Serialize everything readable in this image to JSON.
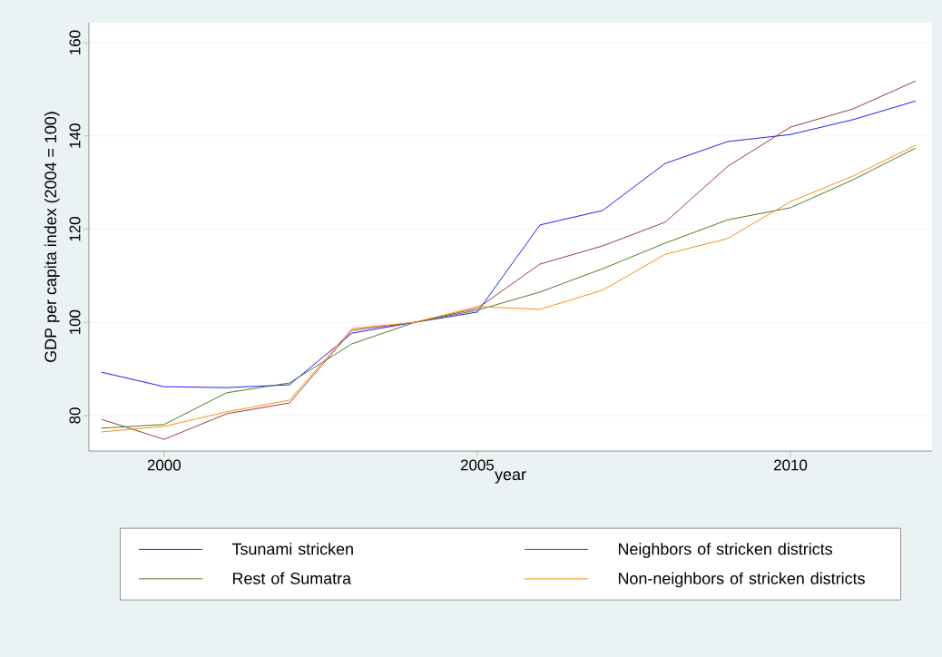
{
  "chart_data": {
    "type": "line",
    "xlabel": "year",
    "ylabel": "GDP per capita index (2004 = 100)",
    "x": [
      1999,
      2000,
      2001,
      2002,
      2003,
      2004,
      2005,
      2006,
      2007,
      2008,
      2009,
      2010,
      2011,
      2012
    ],
    "xlim": [
      1998.8,
      2012.26
    ],
    "xticks": [
      2000,
      2005,
      2010
    ],
    "ylim": [
      72.4,
      164.3
    ],
    "yticks": [
      80,
      100,
      120,
      140,
      160
    ],
    "grid": "y",
    "legend": "bottom",
    "series": [
      {
        "name": "Tsunami stricken",
        "color": "#1f1fff",
        "values": [
          89.3,
          86.2,
          86.0,
          86.6,
          97.7,
          100,
          102.2,
          120.9,
          124.0,
          134.1,
          138.8,
          140.3,
          143.5,
          147.5
        ]
      },
      {
        "name": "Neighbors of stricken districts",
        "color": "#9b3a3a",
        "values": [
          79.2,
          74.9,
          80.4,
          82.7,
          98.3,
          100,
          103.0,
          112.5,
          116.4,
          121.5,
          133.5,
          141.9,
          145.8,
          151.8
        ]
      },
      {
        "name": "Rest of Sumatra",
        "color": "#4f7a28",
        "values": [
          77.3,
          78.1,
          84.9,
          87.0,
          95.4,
          100,
          102.6,
          106.5,
          111.5,
          117.0,
          122.0,
          124.6,
          130.6,
          137.4
        ]
      },
      {
        "name": "Non-neighbors of stricken districts",
        "color": "#ff8c1a",
        "values": [
          76.5,
          77.7,
          80.8,
          83.3,
          98.7,
          100,
          103.4,
          102.8,
          106.9,
          114.6,
          118.0,
          125.9,
          131.4,
          138.0
        ]
      }
    ]
  }
}
